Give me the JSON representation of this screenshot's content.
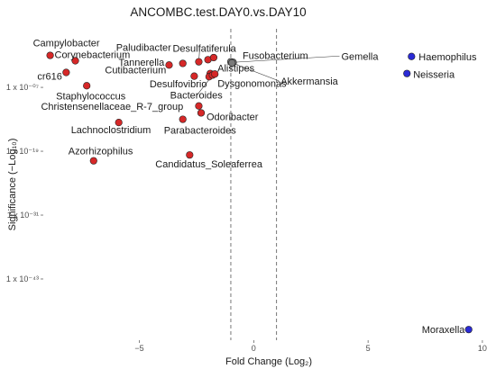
{
  "chart_data": {
    "type": "scatter",
    "title": "ANCOMBC.test.DAY0.vs.DAY10",
    "xlabel": "Fold Change (Log₂)",
    "ylabel": "Significance (−Log₁₀)",
    "xlim": [
      -9.2,
      10.2
    ],
    "ylim": [
      -0.5,
      58
    ],
    "x_ticks": [
      {
        "value": -5,
        "label": "−5"
      },
      {
        "value": 0,
        "label": "0"
      },
      {
        "value": 5,
        "label": "5"
      },
      {
        "value": 10,
        "label": "10"
      }
    ],
    "y_ticks": [
      {
        "value": 47,
        "label": "1 x 10⁻⁰⁷"
      },
      {
        "value": 35,
        "label": "1 x 10⁻¹⁹"
      },
      {
        "value": 23,
        "label": "1 x 10⁻³¹"
      },
      {
        "value": 11,
        "label": "1 x 10⁻⁴³"
      }
    ],
    "thresholds_x": [
      -1,
      1
    ],
    "colors": {
      "down": "#d62828",
      "up": "#2b2bd6",
      "ns": "#7a7a7a"
    },
    "points": [
      {
        "label": "Campylobacter",
        "x": -8.9,
        "y": 53.0,
        "group": "down"
      },
      {
        "label": "Corynebacterium",
        "x": -7.8,
        "y": 52.0,
        "group": "down"
      },
      {
        "label": "cr616",
        "x": -8.2,
        "y": 49.8,
        "group": "down"
      },
      {
        "label": "Staphylococcus",
        "x": -7.3,
        "y": 47.3,
        "group": "down"
      },
      {
        "label": "Tannerella",
        "x": -3.7,
        "y": 51.2,
        "group": "down"
      },
      {
        "label": "Paludibacter",
        "x": -3.1,
        "y": 51.5,
        "group": "down"
      },
      {
        "label": "Desulfatiferula",
        "x": -2.4,
        "y": 51.8,
        "group": "down"
      },
      {
        "label": "",
        "x": -2.0,
        "y": 52.2,
        "group": "down"
      },
      {
        "label": "",
        "x": -1.75,
        "y": 52.6,
        "group": "down"
      },
      {
        "label": "Cutibacterium",
        "x": -2.6,
        "y": 49.1,
        "group": "down"
      },
      {
        "label": "Alistipes",
        "x": -1.9,
        "y": 49.6,
        "group": "down"
      },
      {
        "label": "Desulfovibrio",
        "x": -1.95,
        "y": 49.0,
        "group": "down"
      },
      {
        "label": "Bacteroides",
        "x": -1.8,
        "y": 49.3,
        "group": "down"
      },
      {
        "label": "Dysgonomonas",
        "x": -1.7,
        "y": 49.5,
        "group": "down"
      },
      {
        "label": "Christensenellaceae_R-7_group",
        "x": -2.4,
        "y": 43.5,
        "group": "down"
      },
      {
        "label": "Odoribacter",
        "x": -2.3,
        "y": 42.2,
        "group": "down"
      },
      {
        "label": "Parabacteroides",
        "x": -3.1,
        "y": 41.0,
        "group": "down"
      },
      {
        "label": "Lachnoclostridium",
        "x": -5.9,
        "y": 40.4,
        "group": "down"
      },
      {
        "label": "Azorhizophilus",
        "x": -7.0,
        "y": 33.2,
        "group": "down"
      },
      {
        "label": "Candidatus_Soleaferrea",
        "x": -2.8,
        "y": 34.3,
        "group": "down"
      },
      {
        "label": "Fusobacterium",
        "x": -1.0,
        "y": 51.8,
        "group": "ns"
      },
      {
        "label": "Gemella",
        "x": -0.9,
        "y": 51.7,
        "group": "ns"
      },
      {
        "label": "Akkermansia",
        "x": -0.95,
        "y": 51.6,
        "group": "ns"
      },
      {
        "label": "Haemophilus",
        "x": 6.9,
        "y": 52.8,
        "group": "up"
      },
      {
        "label": "Neisseria",
        "x": 6.7,
        "y": 49.6,
        "group": "up"
      },
      {
        "label": "Moraxella",
        "x": 9.4,
        "y": 1.5,
        "group": "up"
      }
    ]
  }
}
